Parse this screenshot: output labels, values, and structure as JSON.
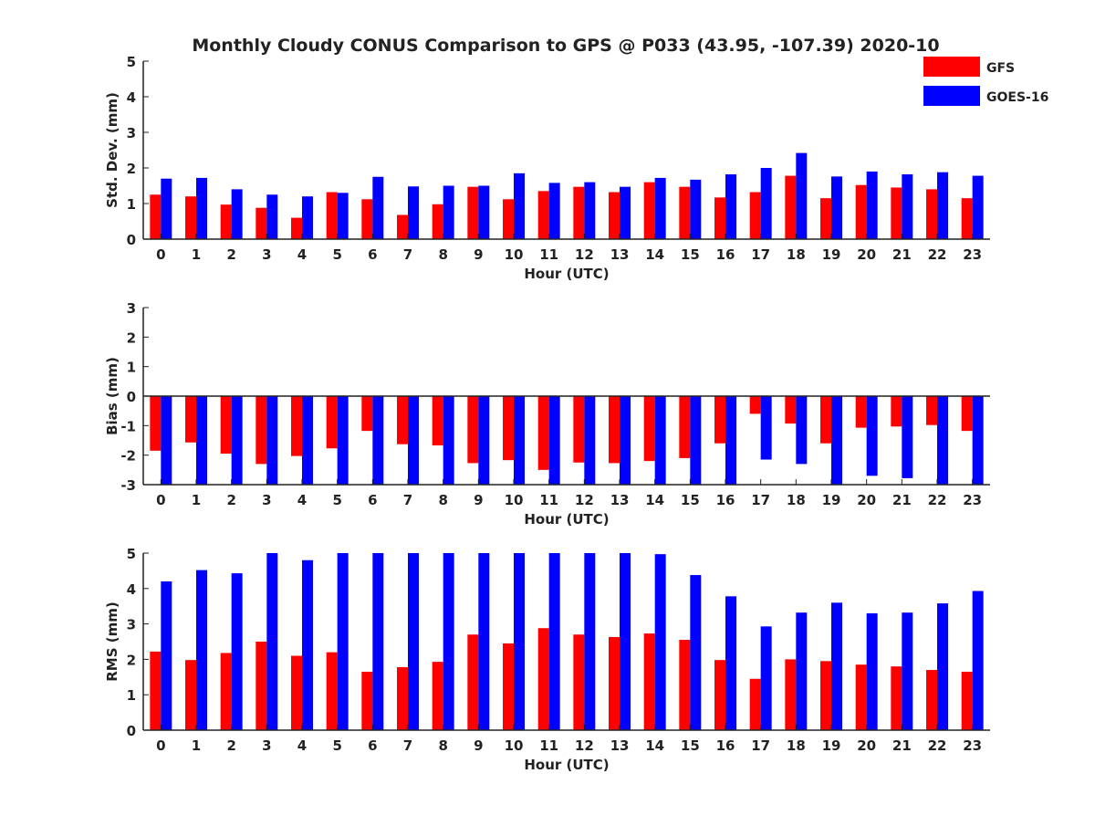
{
  "chart_data": {
    "type": "bar",
    "title": "Monthly Cloudy CONUS Comparison to GPS @ P033 (43.95, -107.39) 2020-10",
    "legend": {
      "placement": "top-right",
      "entries": [
        {
          "name": "GFS",
          "color": "#ff0000"
        },
        {
          "name": "GOES-16",
          "color": "#0000ff"
        }
      ]
    },
    "categories": [
      "0",
      "1",
      "2",
      "3",
      "4",
      "5",
      "6",
      "7",
      "8",
      "9",
      "10",
      "11",
      "12",
      "13",
      "14",
      "15",
      "16",
      "17",
      "18",
      "19",
      "20",
      "21",
      "22",
      "23"
    ],
    "panels": [
      {
        "id": "stddev",
        "xlabel": "Hour (UTC)",
        "ylabel": "Std. Dev. (mm)",
        "ylim": [
          0,
          5
        ],
        "yticks": [
          "0",
          "1",
          "2",
          "3",
          "4",
          "5"
        ],
        "series": [
          {
            "name": "GFS",
            "color": "#ff0000",
            "values": [
              1.25,
              1.2,
              0.97,
              0.88,
              0.6,
              1.32,
              1.12,
              0.68,
              0.98,
              1.47,
              1.12,
              1.35,
              1.47,
              1.32,
              1.6,
              1.47,
              1.17,
              1.32,
              1.78,
              1.15,
              1.52,
              1.45,
              1.4,
              1.15
            ]
          },
          {
            "name": "GOES-16",
            "color": "#0000ff",
            "values": [
              1.7,
              1.72,
              1.4,
              1.25,
              1.2,
              1.3,
              1.75,
              1.48,
              1.5,
              1.5,
              1.85,
              1.58,
              1.6,
              1.47,
              1.72,
              1.67,
              1.82,
              2.0,
              2.42,
              1.76,
              1.9,
              1.82,
              1.88,
              1.78
            ]
          }
        ]
      },
      {
        "id": "bias",
        "xlabel": "Hour (UTC)",
        "ylabel": "Bias (mm)",
        "ylim": [
          -3,
          3
        ],
        "yticks": [
          "-3",
          "-2",
          "-1",
          "0",
          "1",
          "2",
          "3"
        ],
        "series": [
          {
            "name": "GFS",
            "color": "#ff0000",
            "values": [
              -1.85,
              -1.57,
              -1.95,
              -2.3,
              -2.03,
              -1.77,
              -1.18,
              -1.63,
              -1.67,
              -2.27,
              -2.17,
              -2.5,
              -2.25,
              -2.27,
              -2.2,
              -2.1,
              -1.6,
              -0.6,
              -0.93,
              -1.6,
              -1.07,
              -1.03,
              -0.98,
              -1.18
            ]
          },
          {
            "name": "GOES-16",
            "color": "#0000ff",
            "values": [
              -3,
              -3,
              -3,
              -3,
              -3,
              -3,
              -3,
              -3,
              -3,
              -3,
              -3,
              -3,
              -3,
              -3,
              -3,
              -3,
              -3,
              -2.15,
              -2.3,
              -3,
              -2.7,
              -2.78,
              -3,
              -3
            ]
          }
        ]
      },
      {
        "id": "rms",
        "xlabel": "Hour (UTC)",
        "ylabel": "RMS (mm)",
        "ylim": [
          0,
          5
        ],
        "yticks": [
          "0",
          "1",
          "2",
          "3",
          "4",
          "5"
        ],
        "series": [
          {
            "name": "GFS",
            "color": "#ff0000",
            "values": [
              2.22,
              1.98,
              2.18,
              2.5,
              2.1,
              2.2,
              1.65,
              1.78,
              1.93,
              2.7,
              2.45,
              2.88,
              2.7,
              2.63,
              2.73,
              2.55,
              1.98,
              1.45,
              2.0,
              1.95,
              1.85,
              1.8,
              1.7,
              1.65
            ]
          },
          {
            "name": "GOES-16",
            "color": "#0000ff",
            "values": [
              4.2,
              4.52,
              4.43,
              5,
              4.8,
              5,
              5,
              5,
              5,
              5,
              5,
              5,
              5,
              5,
              4.97,
              4.38,
              3.78,
              2.93,
              3.32,
              3.6,
              3.3,
              3.32,
              3.58,
              3.93
            ]
          }
        ]
      }
    ]
  }
}
